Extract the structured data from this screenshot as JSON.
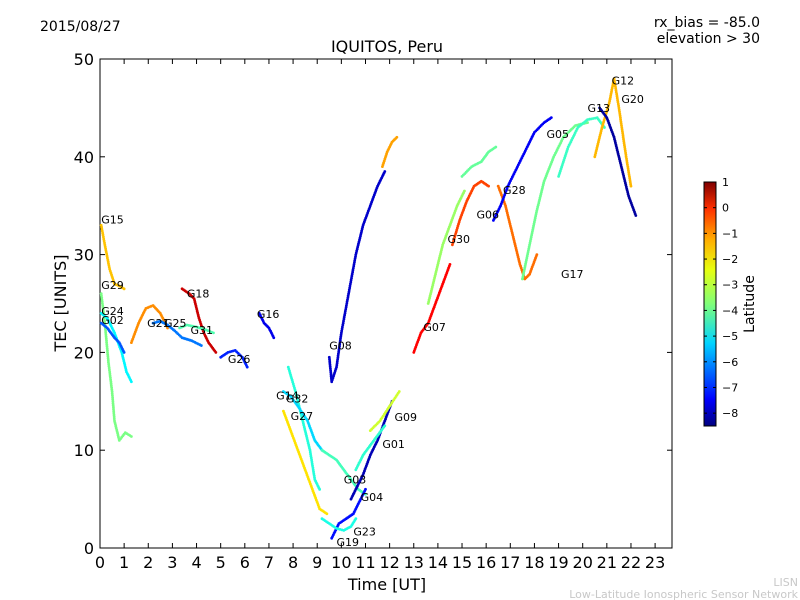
{
  "header": {
    "date": "2015/08/27",
    "rx_bias": "rx_bias = -85.0",
    "elevation": "elevation > 30"
  },
  "footer": {
    "org_short": "LISN",
    "org_long": "Low-Latitude Ionospheric Sensor Network"
  },
  "colorbar": {
    "label": "Latitude",
    "ticks": [
      "1",
      "0",
      "−1",
      "−2",
      "−3",
      "−4",
      "−5",
      "−6",
      "−7",
      "−8"
    ],
    "tick_values": [
      1,
      0,
      -1,
      -2,
      -3,
      -4,
      -5,
      -6,
      -7,
      -8
    ],
    "range": [
      -8.5,
      1.0
    ],
    "colormap": "jet"
  },
  "chart_data": {
    "type": "scatter",
    "title": "IQUITOS, Peru",
    "xlabel": "Time [UT]",
    "ylabel": "TEC [UNITS]",
    "xlim": [
      0,
      23.7
    ],
    "ylim": [
      0,
      50
    ],
    "xticks": [
      "0",
      "1",
      "2",
      "3",
      "4",
      "5",
      "6",
      "7",
      "8",
      "9",
      "10",
      "11",
      "12",
      "13",
      "14",
      "15",
      "16",
      "17",
      "18",
      "19",
      "20",
      "21",
      "22",
      "23"
    ],
    "yticks": [
      "0",
      "10",
      "20",
      "30",
      "40",
      "50"
    ],
    "grid": false,
    "series": [
      {
        "name": "G15",
        "lat": -2.0,
        "points": [
          [
            0.05,
            33
          ],
          [
            0.2,
            31
          ],
          [
            0.4,
            28.5
          ],
          [
            0.6,
            27
          ],
          [
            0.8,
            26.8
          ],
          [
            1.0,
            26.5
          ]
        ]
      },
      {
        "name": "G29",
        "lat": -3.8,
        "points": [
          [
            0.05,
            26
          ],
          [
            0.2,
            23
          ],
          [
            0.35,
            19
          ],
          [
            0.5,
            16
          ],
          [
            0.6,
            13
          ],
          [
            0.8,
            11
          ],
          [
            1.05,
            11.8
          ],
          [
            1.3,
            11.4
          ]
        ]
      },
      {
        "name": "G24",
        "lat": -5.0,
        "points": [
          [
            0.05,
            24
          ],
          [
            0.3,
            23.5
          ],
          [
            0.6,
            22
          ],
          [
            0.9,
            20
          ],
          [
            1.1,
            18
          ],
          [
            1.3,
            17
          ]
        ]
      },
      {
        "name": "G02",
        "lat": -6.5,
        "points": [
          [
            0.05,
            23
          ],
          [
            0.3,
            22.5
          ],
          [
            0.6,
            21.5
          ],
          [
            0.8,
            21
          ],
          [
            1.0,
            20
          ]
        ]
      },
      {
        "name": "G21",
        "lat": -1.5,
        "points": [
          [
            1.3,
            21
          ],
          [
            1.6,
            23
          ],
          [
            1.9,
            24.5
          ],
          [
            2.2,
            24.8
          ],
          [
            2.5,
            24
          ],
          [
            2.8,
            22.5
          ]
        ]
      },
      {
        "name": "G25",
        "lat": -6.2,
        "points": [
          [
            2.2,
            23
          ],
          [
            2.5,
            23.2
          ],
          [
            2.8,
            22.8
          ],
          [
            3.1,
            22.2
          ],
          [
            3.4,
            21.5
          ],
          [
            3.8,
            21.2
          ],
          [
            4.2,
            20.7
          ]
        ]
      },
      {
        "name": "G18",
        "lat": 0.3,
        "points": [
          [
            3.4,
            26.5
          ],
          [
            3.7,
            26
          ],
          [
            3.9,
            25.5
          ],
          [
            4.1,
            23.5
          ],
          [
            4.3,
            22
          ],
          [
            4.5,
            21
          ],
          [
            4.8,
            20
          ]
        ]
      },
      {
        "name": "G31",
        "lat": -4.2,
        "points": [
          [
            3.3,
            22.5
          ],
          [
            3.6,
            22.8
          ],
          [
            4.0,
            22.6
          ],
          [
            4.4,
            22.3
          ],
          [
            4.7,
            22
          ]
        ]
      },
      {
        "name": "G26",
        "lat": -7.0,
        "points": [
          [
            5.0,
            19.5
          ],
          [
            5.3,
            20
          ],
          [
            5.6,
            20.2
          ],
          [
            5.9,
            19.5
          ],
          [
            6.1,
            18.5
          ]
        ]
      },
      {
        "name": "G16",
        "lat": -7.5,
        "points": [
          [
            6.6,
            24
          ],
          [
            6.8,
            23
          ],
          [
            7.0,
            22.5
          ],
          [
            7.2,
            21.5
          ]
        ]
      },
      {
        "name": "G08",
        "lat": -7.8,
        "points": [
          [
            9.5,
            19.5
          ],
          [
            9.6,
            17
          ],
          [
            9.8,
            18.5
          ],
          [
            10.0,
            22
          ],
          [
            10.3,
            26
          ],
          [
            10.6,
            30
          ],
          [
            10.9,
            33
          ],
          [
            11.2,
            35
          ],
          [
            11.5,
            37
          ],
          [
            11.8,
            38.5
          ]
        ]
      },
      {
        "name": "G12",
        "lat": -1.7,
        "points": [
          [
            11.7,
            39
          ],
          [
            11.9,
            40.5
          ],
          [
            12.1,
            41.5
          ],
          [
            12.3,
            42
          ]
        ]
      },
      {
        "name": "G14",
        "lat": -4.6,
        "points": [
          [
            7.8,
            18.5
          ],
          [
            8.1,
            16
          ],
          [
            8.3,
            14
          ],
          [
            8.5,
            12
          ],
          [
            8.7,
            10
          ],
          [
            8.9,
            7
          ],
          [
            9.1,
            6
          ]
        ]
      },
      {
        "name": "G32",
        "lat": -5.3,
        "points": [
          [
            7.6,
            16
          ],
          [
            7.9,
            15.5
          ],
          [
            8.2,
            14.5
          ],
          [
            8.6,
            13
          ],
          [
            8.9,
            11
          ],
          [
            9.2,
            10
          ]
        ]
      },
      {
        "name": "G27",
        "lat": -2.3,
        "points": [
          [
            7.6,
            14
          ],
          [
            7.9,
            12
          ],
          [
            8.2,
            10
          ],
          [
            8.5,
            8
          ],
          [
            8.8,
            6
          ],
          [
            9.1,
            4
          ],
          [
            9.4,
            3.5
          ]
        ]
      },
      {
        "name": "G03",
        "lat": -4.3,
        "points": [
          [
            9.2,
            10
          ],
          [
            9.5,
            9.5
          ],
          [
            9.8,
            9
          ],
          [
            10.1,
            8
          ],
          [
            10.4,
            7
          ],
          [
            10.7,
            6
          ],
          [
            11.0,
            5.5
          ]
        ]
      },
      {
        "name": "G04",
        "lat": -8.0,
        "points": [
          [
            10.4,
            5
          ],
          [
            10.6,
            6
          ],
          [
            10.9,
            7.5
          ],
          [
            11.2,
            9.5
          ],
          [
            11.5,
            11
          ],
          [
            11.8,
            13
          ],
          [
            12.1,
            15
          ]
        ]
      },
      {
        "name": "G01",
        "lat": -4.5,
        "points": [
          [
            10.6,
            8
          ],
          [
            10.9,
            9.5
          ],
          [
            11.2,
            10.5
          ],
          [
            11.5,
            11.5
          ],
          [
            11.8,
            12.5
          ]
        ]
      },
      {
        "name": "G09",
        "lat": -3.0,
        "points": [
          [
            11.2,
            12
          ],
          [
            11.6,
            13
          ],
          [
            12.0,
            14.5
          ],
          [
            12.4,
            16
          ]
        ]
      },
      {
        "name": "G19",
        "lat": -7.2,
        "points": [
          [
            9.6,
            1
          ],
          [
            9.9,
            2.5
          ],
          [
            10.2,
            3
          ],
          [
            10.5,
            3.5
          ],
          [
            10.8,
            5
          ],
          [
            11.0,
            6
          ]
        ]
      },
      {
        "name": "G23",
        "lat": -4.7,
        "points": [
          [
            9.2,
            3
          ],
          [
            9.5,
            2.5
          ],
          [
            9.8,
            2
          ],
          [
            10.1,
            1.8
          ],
          [
            10.4,
            2.2
          ],
          [
            10.6,
            3
          ]
        ]
      },
      {
        "name": "G07",
        "lat": -0.2,
        "points": [
          [
            13.0,
            20
          ],
          [
            13.3,
            22
          ],
          [
            13.6,
            23
          ],
          [
            13.9,
            25
          ],
          [
            14.2,
            27
          ],
          [
            14.5,
            29
          ]
        ]
      },
      {
        "name": "G30",
        "lat": -3.5,
        "points": [
          [
            13.6,
            25
          ],
          [
            13.9,
            28
          ],
          [
            14.2,
            31
          ],
          [
            14.5,
            33
          ],
          [
            14.8,
            35
          ],
          [
            15.1,
            36.5
          ]
        ]
      },
      {
        "name": "G06",
        "lat": -0.8,
        "points": [
          [
            14.6,
            31
          ],
          [
            14.9,
            33.5
          ],
          [
            15.2,
            35.5
          ],
          [
            15.5,
            37
          ],
          [
            15.8,
            37.5
          ],
          [
            16.1,
            37
          ]
        ]
      },
      {
        "name": "G28",
        "lat": -4.0,
        "points": [
          [
            15.0,
            38
          ],
          [
            15.4,
            39
          ],
          [
            15.8,
            39.5
          ],
          [
            16.1,
            40.5
          ],
          [
            16.4,
            41
          ]
        ]
      },
      {
        "name": "G17",
        "lat": -1.2,
        "points": [
          [
            16.5,
            37
          ],
          [
            16.8,
            35
          ],
          [
            17.1,
            32
          ],
          [
            17.4,
            29
          ],
          [
            17.6,
            27.5
          ],
          [
            17.8,
            28
          ],
          [
            18.1,
            30
          ]
        ]
      },
      {
        "name": "G05",
        "lat": -7.4,
        "points": [
          [
            16.3,
            33.5
          ],
          [
            16.6,
            35
          ],
          [
            16.9,
            37
          ],
          [
            17.3,
            39
          ],
          [
            17.7,
            41
          ],
          [
            18.0,
            42.5
          ],
          [
            18.4,
            43.5
          ],
          [
            18.7,
            44
          ]
        ]
      },
      {
        "name": "G13",
        "lat": -3.9,
        "points": [
          [
            17.5,
            27.5
          ],
          [
            17.8,
            31
          ],
          [
            18.1,
            34.5
          ],
          [
            18.4,
            37.5
          ],
          [
            18.8,
            40
          ],
          [
            19.2,
            42
          ],
          [
            19.7,
            43.2
          ],
          [
            20.2,
            43.5
          ]
        ]
      },
      {
        "name": "G20",
        "lat": -4.4,
        "points": [
          [
            19.0,
            38
          ],
          [
            19.4,
            41
          ],
          [
            19.8,
            43
          ],
          [
            20.2,
            43.8
          ],
          [
            20.6,
            44
          ],
          [
            20.9,
            43
          ]
        ]
      },
      {
        "name": "G12b",
        "lat": -1.9,
        "points": [
          [
            20.5,
            40
          ],
          [
            20.8,
            43
          ],
          [
            21.1,
            45.5
          ],
          [
            21.3,
            48
          ],
          [
            21.5,
            45
          ],
          [
            21.8,
            40
          ],
          [
            22.0,
            37
          ]
        ]
      },
      {
        "name": "G13b",
        "lat": -8.2,
        "points": [
          [
            20.7,
            45
          ],
          [
            21.0,
            44
          ],
          [
            21.3,
            42
          ],
          [
            21.6,
            39
          ],
          [
            21.9,
            36
          ],
          [
            22.2,
            34
          ]
        ]
      }
    ],
    "labels": [
      {
        "text": "G15",
        "x": 0.05,
        "y": 33.2
      },
      {
        "text": "G29",
        "x": 0.05,
        "y": 26.5
      },
      {
        "text": "G24",
        "x": 0.05,
        "y": 23.8
      },
      {
        "text": "G02",
        "x": 0.05,
        "y": 22.9
      },
      {
        "text": "G21",
        "x": 1.95,
        "y": 22.6
      },
      {
        "text": "G25",
        "x": 2.65,
        "y": 22.6
      },
      {
        "text": "G18",
        "x": 3.6,
        "y": 25.6
      },
      {
        "text": "G31",
        "x": 3.75,
        "y": 21.9
      },
      {
        "text": "G26",
        "x": 5.3,
        "y": 18.9
      },
      {
        "text": "G16",
        "x": 6.5,
        "y": 23.5
      },
      {
        "text": "G08",
        "x": 9.5,
        "y": 20.3
      },
      {
        "text": "G14",
        "x": 7.3,
        "y": 15.2
      },
      {
        "text": "G32",
        "x": 7.7,
        "y": 14.9
      },
      {
        "text": "G27",
        "x": 7.9,
        "y": 13.1
      },
      {
        "text": "G03",
        "x": 10.1,
        "y": 6.6
      },
      {
        "text": "G04",
        "x": 10.8,
        "y": 4.8
      },
      {
        "text": "G01",
        "x": 11.7,
        "y": 10.2
      },
      {
        "text": "G09",
        "x": 12.2,
        "y": 13.0
      },
      {
        "text": "G23",
        "x": 10.5,
        "y": 1.3
      },
      {
        "text": "G19",
        "x": 9.8,
        "y": 0.2
      },
      {
        "text": "G07",
        "x": 13.4,
        "y": 22.2
      },
      {
        "text": "G30",
        "x": 14.4,
        "y": 31.2
      },
      {
        "text": "G06",
        "x": 15.6,
        "y": 33.7
      },
      {
        "text": "G28",
        "x": 16.7,
        "y": 36.2
      },
      {
        "text": "G17",
        "x": 19.1,
        "y": 27.6
      },
      {
        "text": "G05",
        "x": 18.5,
        "y": 41.9
      },
      {
        "text": "G13",
        "x": 20.2,
        "y": 44.6
      },
      {
        "text": "G12",
        "x": 21.2,
        "y": 47.4
      },
      {
        "text": "G20",
        "x": 21.6,
        "y": 45.5
      }
    ]
  }
}
